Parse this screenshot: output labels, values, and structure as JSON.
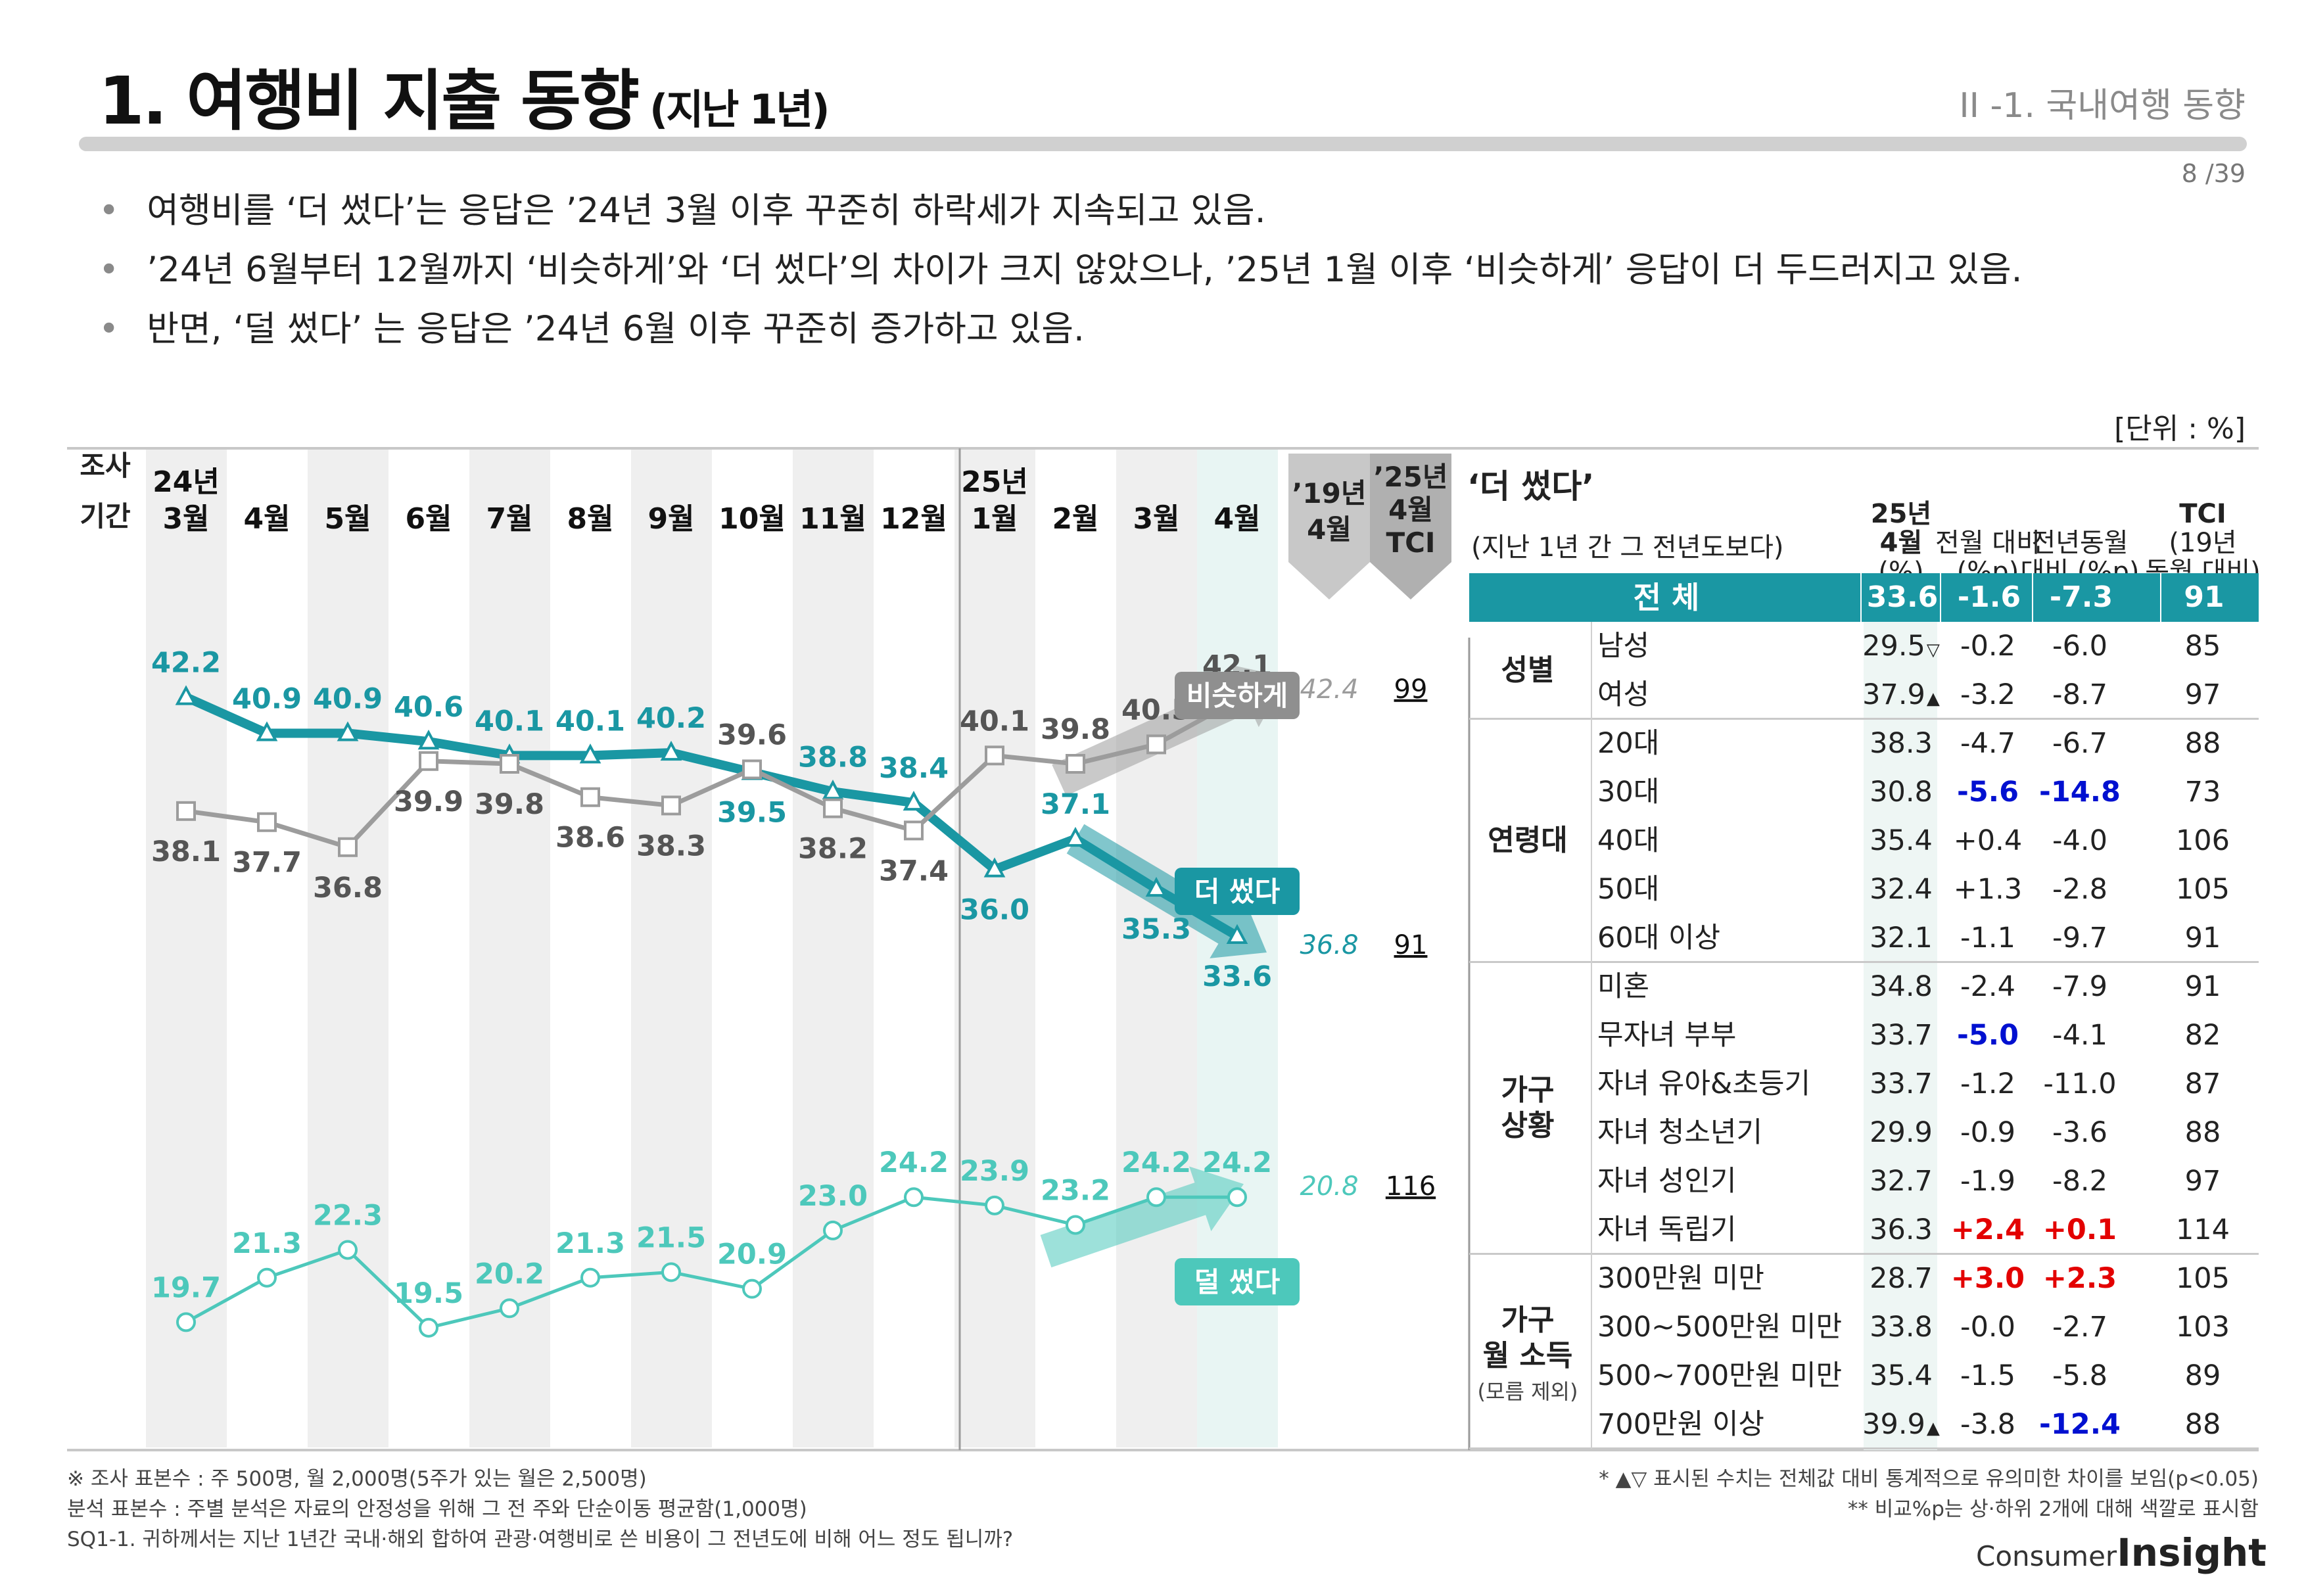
{
  "header": {
    "title": "1. 여행비 지출 동향",
    "title_sub": "(지난 1년)",
    "section": "II -1. 국내여행 동향",
    "page": "8 /39"
  },
  "bullets": [
    "여행비를 ‘더 썼다’는 응답은 ’24년 3월 이후 꾸준히 하락세가 지속되고 있음.",
    "’24년 6월부터 12월까지 ‘비슷하게’와 ‘더 썼다’의 차이가 크지 않았으나, ’25년 1월 이후 ‘비슷하게’ 응답이 더 두드러지고 있음.",
    "반면, ‘덜 썼다’ 는 응답은 ’24년 6월 이후 꾸준히 증가하고 있음."
  ],
  "unit": "[단위 : %]",
  "chart_data": {
    "type": "line",
    "period_label": [
      "조사",
      "기간"
    ],
    "categories": [
      [
        "24년",
        "3월"
      ],
      [
        "4월"
      ],
      [
        "5월"
      ],
      [
        "6월"
      ],
      [
        "7월"
      ],
      [
        "8월"
      ],
      [
        "9월"
      ],
      [
        "10월"
      ],
      [
        "11월"
      ],
      [
        "12월"
      ],
      [
        "25년",
        "1월"
      ],
      [
        "2월"
      ],
      [
        "3월"
      ],
      [
        "4월"
      ]
    ],
    "ylim": [
      15,
      46
    ],
    "series": [
      {
        "name": "더 썼다",
        "color": "#1a97a3",
        "values": [
          42.2,
          40.9,
          40.9,
          40.6,
          40.1,
          40.1,
          40.2,
          39.5,
          38.8,
          38.4,
          36.0,
          37.1,
          35.3,
          33.6
        ],
        "ref_2019": "36.8",
        "tci": "91"
      },
      {
        "name": "비슷하게",
        "color": "#9c9c9c",
        "values": [
          38.1,
          37.7,
          36.8,
          39.9,
          39.8,
          38.6,
          38.3,
          39.6,
          38.2,
          37.4,
          40.1,
          39.8,
          40.5,
          42.1
        ],
        "ref_2019": "42.4",
        "tci": "99"
      },
      {
        "name": "덜 썼다",
        "color": "#4dc8bb",
        "values": [
          19.7,
          21.3,
          22.3,
          19.5,
          20.2,
          21.3,
          21.5,
          20.9,
          23.0,
          24.2,
          23.9,
          23.2,
          24.2,
          24.2
        ],
        "ref_2019": "20.8",
        "tci": "116"
      }
    ],
    "ref_col_label": [
      "’19년",
      "4월"
    ],
    "tci_col_label": [
      "’25년",
      "4월",
      "TCI"
    ]
  },
  "table": {
    "title": "‘더 썼다’",
    "subtitle": "(지난 1년 간 그 전년도보다)",
    "columns": [
      [
        "25년",
        "4월",
        "(%)"
      ],
      [
        "전월 대비",
        "(%p)"
      ],
      [
        "전년동월",
        "대비 (%p)"
      ],
      [
        "TCI",
        "(19년",
        "동월 대비)"
      ]
    ],
    "total": {
      "label": "전 체",
      "values": [
        "33.6",
        "-1.6",
        "-7.3",
        "91"
      ]
    },
    "groups": [
      {
        "label": [
          "성별"
        ],
        "rows": [
          {
            "name": "남성",
            "v": [
              "29.5",
              "-0.2",
              "-6.0",
              "85"
            ],
            "sig": "▽"
          },
          {
            "name": "여성",
            "v": [
              "37.9",
              "-3.2",
              "-8.7",
              "97"
            ],
            "sig": "▲"
          }
        ]
      },
      {
        "label": [
          "연령대"
        ],
        "rows": [
          {
            "name": "20대",
            "v": [
              "38.3",
              "-4.7",
              "-6.7",
              "88"
            ]
          },
          {
            "name": "30대",
            "v": [
              "30.8",
              "-5.6",
              "-14.8",
              "73"
            ],
            "c": [
              "",
              "blue",
              "blue",
              ""
            ]
          },
          {
            "name": "40대",
            "v": [
              "35.4",
              "+0.4",
              "-4.0",
              "106"
            ]
          },
          {
            "name": "50대",
            "v": [
              "32.4",
              "+1.3",
              "-2.8",
              "105"
            ]
          },
          {
            "name": "60대 이상",
            "v": [
              "32.1",
              "-1.1",
              "-9.7",
              "91"
            ]
          }
        ]
      },
      {
        "label": [
          "가구",
          "상황"
        ],
        "rows": [
          {
            "name": "미혼",
            "v": [
              "34.8",
              "-2.4",
              "-7.9",
              "91"
            ]
          },
          {
            "name": "무자녀 부부",
            "v": [
              "33.7",
              "-5.0",
              "-4.1",
              "82"
            ],
            "c": [
              "",
              "blue",
              "",
              ""
            ]
          },
          {
            "name": "자녀 유아&초등기",
            "v": [
              "33.7",
              "-1.2",
              "-11.0",
              "87"
            ]
          },
          {
            "name": "자녀 청소년기",
            "v": [
              "29.9",
              "-0.9",
              "-3.6",
              "88"
            ]
          },
          {
            "name": "자녀 성인기",
            "v": [
              "32.7",
              "-1.9",
              "-8.2",
              "97"
            ]
          },
          {
            "name": "자녀 독립기",
            "v": [
              "36.3",
              "+2.4",
              "+0.1",
              "114"
            ],
            "c": [
              "",
              "red",
              "red",
              ""
            ]
          }
        ]
      },
      {
        "label": [
          "가구",
          "월 소득"
        ],
        "note": "(모름 제외)",
        "rows": [
          {
            "name": "300만원 미만",
            "v": [
              "28.7",
              "+3.0",
              "+2.3",
              "105"
            ],
            "c": [
              "",
              "red",
              "red",
              ""
            ]
          },
          {
            "name": "300~500만원 미만",
            "v": [
              "33.8",
              "-0.0",
              "-2.7",
              "103"
            ]
          },
          {
            "name": "500~700만원 미만",
            "v": [
              "35.4",
              "-1.5",
              "-5.8",
              "89"
            ]
          },
          {
            "name": "700만원 이상",
            "v": [
              "39.9",
              "-3.8",
              "-12.4",
              "88"
            ],
            "sig": "▲",
            "c": [
              "",
              "",
              "blue",
              ""
            ]
          }
        ]
      }
    ]
  },
  "footnotes": {
    "left": [
      "※ 조사 표본수 : 주 500명, 월 2,000명(5주가 있는 월은 2,500명)",
      " 분석 표본수 : 주별 분석은 자료의 안정성을 위해 그 전 주와 단순이동 평균함(1,000명)",
      "SQ1-1. 귀하께서는 지난 1년간 국내·해외 합하여 관광·여행비로 쓴 비용이 그 전년도에 비해 어느 정도 됩니까?"
    ],
    "right": [
      "* ▲▽ 표시된 수치는 전체값 대비 통계적으로 유의미한 차이를 보임(p<0.05)",
      "** 비교%p는 상·하위 2개에 대해 색깔로 표시함"
    ]
  },
  "logo": {
    "small": "Consumer",
    "big": "Insight"
  }
}
